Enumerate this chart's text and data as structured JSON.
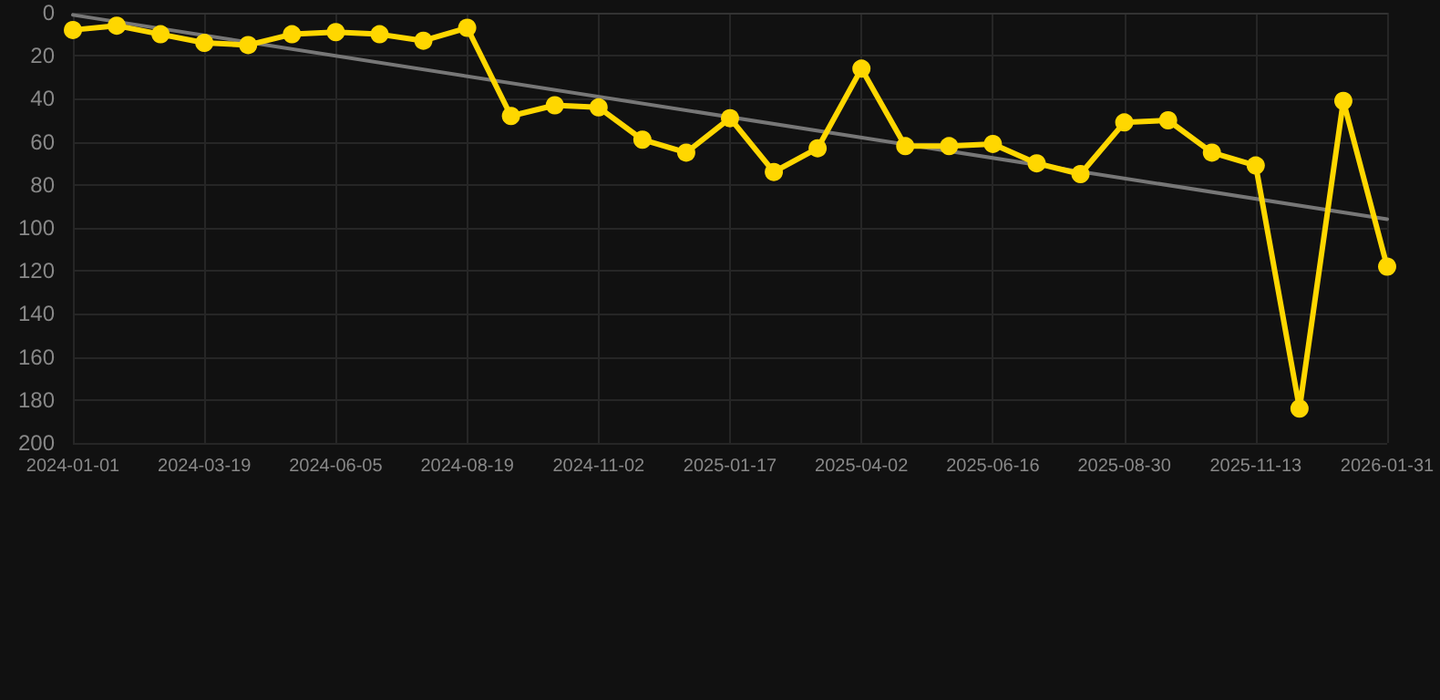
{
  "chart_data": {
    "type": "line",
    "categories": [
      "2024-01-01",
      null,
      null,
      "2024-03-19",
      null,
      null,
      "2024-06-05",
      null,
      null,
      "2024-08-19",
      null,
      null,
      "2024-11-02",
      null,
      null,
      "2025-01-17",
      null,
      null,
      "2025-04-02",
      null,
      null,
      "2025-06-16",
      null,
      null,
      "2025-08-30",
      null,
      null,
      "2025-11-13",
      null,
      null,
      "2026-01-31"
    ],
    "series": [
      {
        "color": "#ffd700",
        "values": [
          8,
          6,
          10,
          14,
          15,
          10,
          9,
          10,
          13,
          7,
          48,
          43,
          44,
          59,
          65,
          49,
          74,
          63,
          26,
          62,
          62,
          61,
          70,
          75,
          51,
          50,
          65,
          71,
          184,
          41,
          118
        ]
      },
      {
        "type": "line",
        "color": "#777777",
        "marker": "none",
        "values": [
          1,
          null,
          null,
          null,
          null,
          null,
          null,
          null,
          null,
          null,
          null,
          null,
          null,
          null,
          null,
          null,
          null,
          null,
          null,
          null,
          null,
          null,
          null,
          null,
          null,
          null,
          null,
          null,
          null,
          null,
          96
        ]
      }
    ],
    "ylim": [
      200,
      0
    ],
    "yticks": [
      0,
      20,
      40,
      60,
      80,
      100,
      120,
      140,
      160,
      180,
      200
    ],
    "grid": true,
    "marker": "circle",
    "line_style": "solid"
  }
}
